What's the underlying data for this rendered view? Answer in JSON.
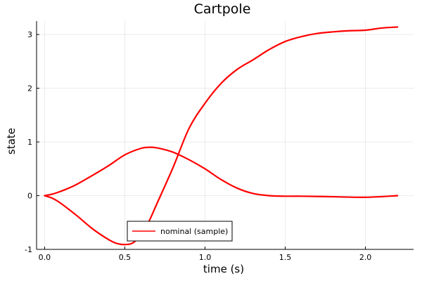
{
  "chart_data": {
    "type": "line",
    "title": "Cartpole",
    "xlabel": "time (s)",
    "ylabel": "state",
    "xlim": [
      -0.05,
      2.3
    ],
    "ylim": [
      -1.0,
      3.25
    ],
    "xticks": [
      0.0,
      0.5,
      1.0,
      1.5,
      2.0
    ],
    "xtick_labels": [
      "0.0",
      "0.5",
      "1.0",
      "1.5",
      "2.0"
    ],
    "yticks": [
      -1,
      0,
      1,
      2,
      3
    ],
    "ytick_labels": [
      "-1",
      "0",
      "1",
      "2",
      "3"
    ],
    "grid": true,
    "legend": {
      "placement": "bottom-center",
      "entries": [
        {
          "label": "nominal (sample)",
          "color": "#ff0000"
        }
      ]
    },
    "series": [
      {
        "name": "nominal (sample)",
        "color": "#ff0000",
        "x": [
          0.0,
          0.05,
          0.1,
          0.15,
          0.2,
          0.3,
          0.4,
          0.5,
          0.6,
          0.65,
          0.7,
          0.8,
          0.9,
          1.0,
          1.1,
          1.2,
          1.3,
          1.4,
          1.5,
          1.6,
          1.8,
          2.0,
          2.2
        ],
        "y": [
          0.0,
          0.03,
          0.08,
          0.14,
          0.21,
          0.38,
          0.56,
          0.76,
          0.88,
          0.9,
          0.89,
          0.81,
          0.67,
          0.5,
          0.3,
          0.14,
          0.04,
          0.0,
          -0.01,
          -0.01,
          -0.02,
          -0.03,
          0.0
        ]
      },
      {
        "name": "",
        "color": "#ff0000",
        "x": [
          0.0,
          0.05,
          0.1,
          0.2,
          0.3,
          0.4,
          0.45,
          0.5,
          0.55,
          0.6,
          0.65,
          0.7,
          0.8,
          0.9,
          1.0,
          1.1,
          1.2,
          1.3,
          1.4,
          1.5,
          1.6,
          1.7,
          1.8,
          1.9,
          2.0,
          2.1,
          2.2
        ],
        "y": [
          0.0,
          -0.05,
          -0.14,
          -0.37,
          -0.62,
          -0.82,
          -0.89,
          -0.91,
          -0.88,
          -0.73,
          -0.48,
          -0.15,
          0.52,
          1.25,
          1.72,
          2.09,
          2.35,
          2.53,
          2.72,
          2.87,
          2.96,
          3.02,
          3.05,
          3.07,
          3.08,
          3.12,
          3.14
        ]
      }
    ]
  }
}
